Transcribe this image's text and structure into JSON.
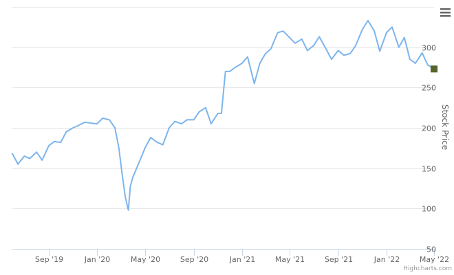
{
  "chart_data": {
    "type": "line",
    "x_ticks": [
      "Sep '19",
      "Jan '20",
      "May '20",
      "Sep '20",
      "Jan '21",
      "May '21",
      "Sep '21",
      "Jan '22",
      "May '22"
    ],
    "ylabel": "Stock Price",
    "y_ticks": [
      50,
      100,
      150,
      200,
      250,
      300
    ],
    "ylim": [
      50,
      350
    ],
    "xlim": [
      "2019-06-01",
      "2022-05-01"
    ],
    "grid": true,
    "y_axis_side": "right",
    "series": [
      {
        "color": "#7cb5ec",
        "x": [
          "2019-06-01",
          "2019-06-15",
          "2019-07-01",
          "2019-07-15",
          "2019-08-01",
          "2019-08-15",
          "2019-09-01",
          "2019-09-15",
          "2019-10-01",
          "2019-10-15",
          "2019-11-01",
          "2019-11-15",
          "2019-12-01",
          "2019-12-15",
          "2020-01-01",
          "2020-01-15",
          "2020-02-01",
          "2020-02-15",
          "2020-02-25",
          "2020-03-05",
          "2020-03-12",
          "2020-03-20",
          "2020-03-25",
          "2020-04-01",
          "2020-04-10",
          "2020-04-20",
          "2020-05-01",
          "2020-05-15",
          "2020-06-01",
          "2020-06-15",
          "2020-07-01",
          "2020-07-15",
          "2020-08-01",
          "2020-08-15",
          "2020-09-01",
          "2020-09-15",
          "2020-10-01",
          "2020-10-15",
          "2020-11-01",
          "2020-11-10",
          "2020-11-20",
          "2020-12-01",
          "2020-12-15",
          "2021-01-01",
          "2021-01-15",
          "2021-02-01",
          "2021-02-15",
          "2021-03-01",
          "2021-03-15",
          "2021-04-01",
          "2021-04-15",
          "2021-05-01",
          "2021-05-15",
          "2021-06-01",
          "2021-06-15",
          "2021-07-01",
          "2021-07-15",
          "2021-08-01",
          "2021-08-15",
          "2021-09-01",
          "2021-09-15",
          "2021-10-01",
          "2021-10-15",
          "2021-11-01",
          "2021-11-15",
          "2021-12-01",
          "2021-12-15",
          "2022-01-01",
          "2022-01-15",
          "2022-02-01",
          "2022-02-15",
          "2022-03-01",
          "2022-03-15",
          "2022-04-01",
          "2022-04-15",
          "2022-05-01"
        ],
        "values": [
          168,
          155,
          165,
          162,
          170,
          160,
          178,
          183,
          182,
          195,
          200,
          203,
          207,
          206,
          205,
          212,
          210,
          200,
          175,
          140,
          115,
          98,
          128,
          140,
          150,
          162,
          175,
          188,
          182,
          179,
          200,
          208,
          205,
          210,
          210,
          220,
          225,
          205,
          218,
          218,
          270,
          270,
          275,
          280,
          288,
          255,
          280,
          292,
          298,
          318,
          320,
          312,
          305,
          310,
          296,
          302,
          313,
          298,
          285,
          296,
          290,
          292,
          302,
          322,
          333,
          320,
          295,
          318,
          325,
          300,
          312,
          285,
          280,
          293,
          278,
          273
        ]
      }
    ]
  },
  "credits": "Highcharts.com",
  "menu_icon": "hamburger-menu-icon",
  "last_value_marker_color": "#55662a"
}
